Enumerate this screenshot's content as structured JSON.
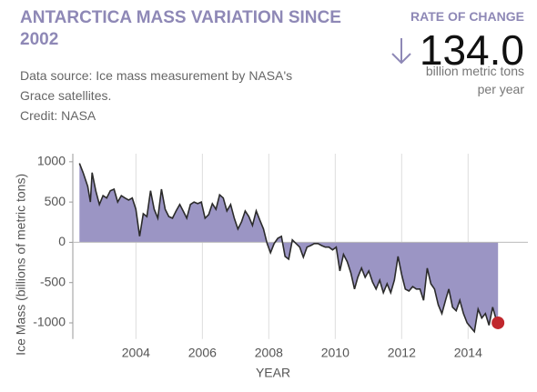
{
  "header": {
    "title": "ANTARCTICA MASS VARIATION SINCE 2002",
    "source": "Data source: Ice mass measurement by NASA's Grace satellites.",
    "credit": "Credit: NASA"
  },
  "rate": {
    "label": "RATE OF CHANGE",
    "value": "134.0",
    "unit": "billion metric tons per year"
  },
  "chart_data": {
    "type": "area",
    "y_label": "Ice Mass (billions of metric tons)",
    "x_label": "YEAR",
    "color": "#9b95c4",
    "line_color": "#2b2b2b",
    "highlight_color": "#c0272d",
    "grid": true,
    "xlim": [
      2002.1,
      2015.8
    ],
    "ylim": [
      -1200,
      1100
    ],
    "xticks": [
      2004,
      2006,
      2008,
      2010,
      2012,
      2014
    ],
    "yticks": [
      -1000,
      -500,
      0,
      500,
      1000
    ],
    "x": [
      2002.3,
      2002.41,
      2002.55,
      2002.63,
      2002.68,
      2002.79,
      2002.9,
      2003.01,
      2003.12,
      2003.23,
      2003.34,
      2003.45,
      2003.56,
      2003.67,
      2003.78,
      2003.89,
      2004.0,
      2004.11,
      2004.22,
      2004.33,
      2004.44,
      2004.55,
      2004.66,
      2004.77,
      2004.88,
      2004.99,
      2005.1,
      2005.21,
      2005.32,
      2005.42,
      2005.53,
      2005.64,
      2005.75,
      2005.86,
      2005.97,
      2006.08,
      2006.19,
      2006.3,
      2006.41,
      2006.52,
      2006.63,
      2006.74,
      2006.85,
      2006.96,
      2007.07,
      2007.18,
      2007.29,
      2007.4,
      2007.51,
      2007.62,
      2007.73,
      2007.84,
      2007.95,
      2008.05,
      2008.16,
      2008.27,
      2008.38,
      2008.49,
      2008.6,
      2008.71,
      2008.82,
      2008.93,
      2009.04,
      2009.15,
      2009.26,
      2009.37,
      2009.48,
      2009.59,
      2009.7,
      2009.81,
      2009.92,
      2010.03,
      2010.14,
      2010.25,
      2010.36,
      2010.47,
      2010.58,
      2010.68,
      2010.79,
      2010.9,
      2011.01,
      2011.12,
      2011.23,
      2011.34,
      2011.45,
      2011.56,
      2011.67,
      2011.78,
      2011.89,
      2012.0,
      2012.11,
      2012.22,
      2012.33,
      2012.44,
      2012.55,
      2012.66,
      2012.77,
      2012.88,
      2012.99,
      2013.1,
      2013.21,
      2013.32,
      2013.42,
      2013.53,
      2013.64,
      2013.75,
      2013.86,
      2013.97,
      2014.08,
      2014.19,
      2014.3,
      2014.41,
      2014.52,
      2014.63,
      2014.74,
      2014.85,
      2014.9
    ],
    "values": [
      980,
      865,
      695,
      500,
      865,
      640,
      470,
      580,
      550,
      640,
      660,
      500,
      580,
      550,
      525,
      550,
      410,
      75,
      355,
      320,
      640,
      410,
      300,
      660,
      410,
      320,
      300,
      390,
      470,
      390,
      300,
      470,
      500,
      480,
      500,
      300,
      345,
      480,
      410,
      590,
      550,
      390,
      470,
      300,
      165,
      255,
      390,
      320,
      210,
      390,
      275,
      165,
      -15,
      -130,
      -15,
      50,
      75,
      -175,
      -210,
      30,
      -15,
      -60,
      -185,
      -60,
      -40,
      -15,
      -15,
      -40,
      -60,
      -60,
      -95,
      -60,
      -355,
      -150,
      -240,
      -380,
      -580,
      -435,
      -320,
      -435,
      -355,
      -490,
      -580,
      -470,
      -625,
      -515,
      -625,
      -470,
      -175,
      -400,
      -580,
      -605,
      -550,
      -580,
      -580,
      -720,
      -320,
      -515,
      -580,
      -775,
      -885,
      -720,
      -580,
      -805,
      -850,
      -720,
      -885,
      -1000,
      -1055,
      -1110,
      -830,
      -940,
      -885,
      -1030,
      -805,
      -965,
      -1000
    ]
  }
}
